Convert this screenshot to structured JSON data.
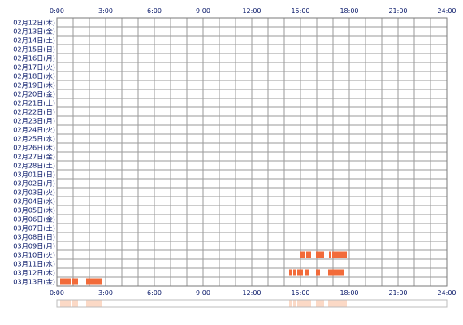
{
  "chart_data": {
    "type": "heatmap",
    "title": "",
    "x_tick_labels": [
      "0:00",
      "3:00",
      "6:00",
      "9:00",
      "12:00",
      "15:00",
      "18:00",
      "21:00",
      "24:00"
    ],
    "x_range_hours": [
      0,
      24
    ],
    "grid": true,
    "row_labels": [
      "02月12日(木)",
      "02月13日(金)",
      "02月14日(土)",
      "02月15日(日)",
      "02月16日(月)",
      "02月17日(火)",
      "02月18日(水)",
      "02月19日(木)",
      "02月20日(金)",
      "02月21日(土)",
      "02月22日(日)",
      "02月23日(月)",
      "02月24日(火)",
      "02月25日(水)",
      "02月26日(木)",
      "02月27日(金)",
      "02月28日(土)",
      "03月01日(日)",
      "03月02日(月)",
      "03月03日(火)",
      "03月04日(水)",
      "03月05日(木)",
      "03月06日(金)",
      "03月07日(土)",
      "03月08日(日)",
      "03月09日(月)",
      "03月10日(火)",
      "03月11日(水)",
      "03月12日(木)",
      "03月13日(金)"
    ],
    "activity_color": "#f26b3a",
    "summary_color": "#fbd9c6",
    "activity": [
      {
        "row": "03月10日(火)",
        "intervals": [
          [
            14.95,
            15.25
          ],
          [
            15.35,
            15.65
          ],
          [
            15.95,
            16.45
          ],
          [
            16.75,
            16.85
          ],
          [
            16.95,
            17.85
          ]
        ]
      },
      {
        "row": "03月12日(木)",
        "intervals": [
          [
            14.3,
            14.45
          ],
          [
            14.55,
            14.7
          ],
          [
            14.8,
            15.15
          ],
          [
            15.25,
            15.5
          ],
          [
            15.95,
            16.2
          ],
          [
            16.7,
            17.65
          ]
        ]
      },
      {
        "row": "03月13日(金)",
        "intervals": [
          [
            0.2,
            0.85
          ],
          [
            0.95,
            1.3
          ],
          [
            1.8,
            2.8
          ]
        ]
      }
    ]
  }
}
